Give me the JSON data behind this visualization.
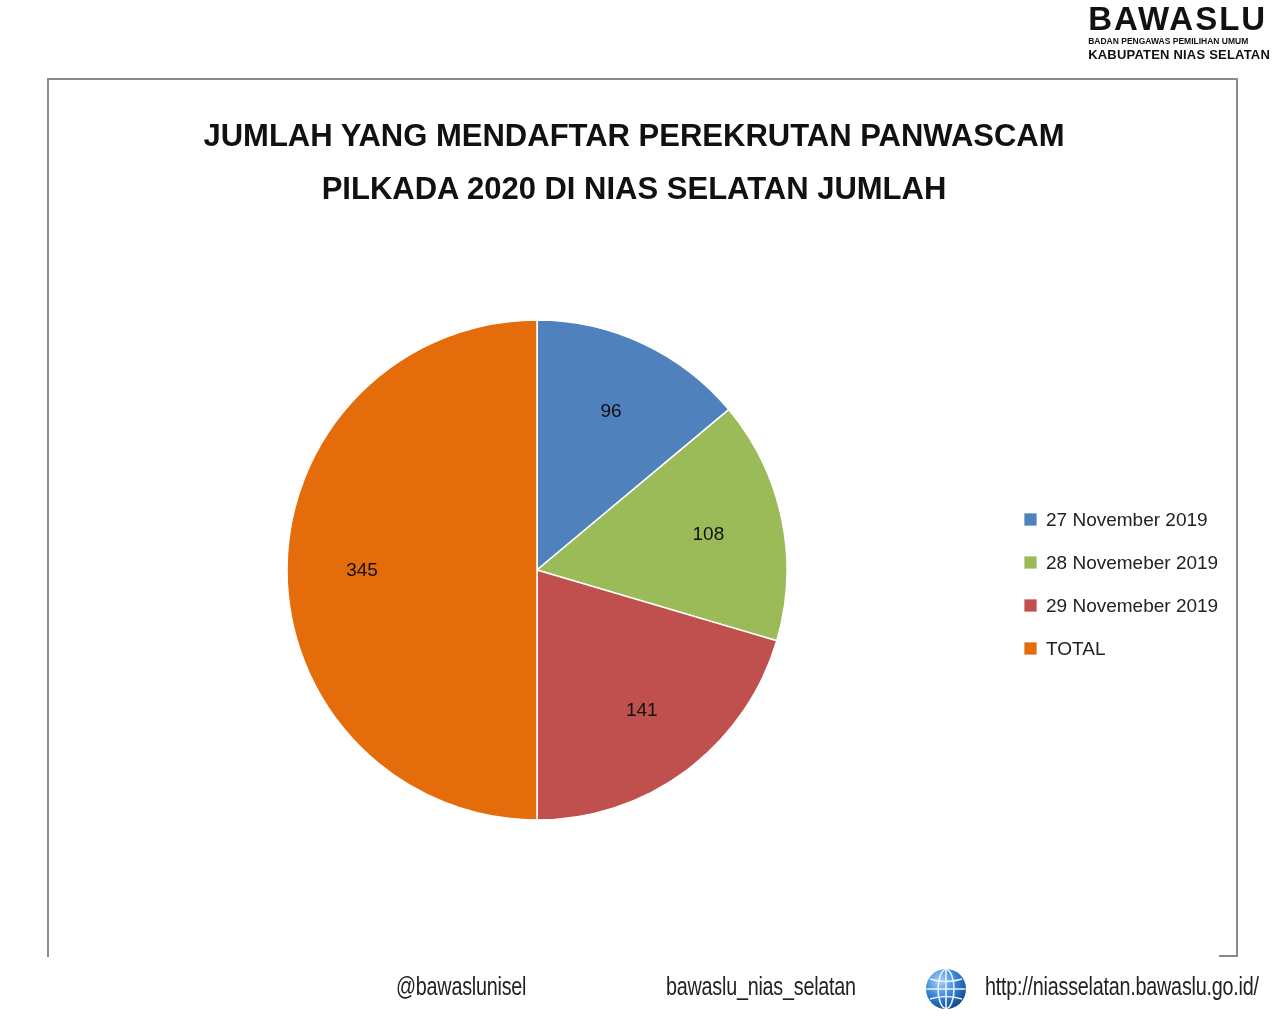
{
  "chart_data": {
    "type": "pie",
    "title": "JUMLAH YANG MENDAFTAR PEREKRUTAN PANWASCAM PILKADA 2020 DI NIAS SELATAN JUMLAH",
    "categories": [
      "27 November 2019",
      "28 Novemeber 2019",
      "29 Novemeber 2019",
      "TOTAL"
    ],
    "values": [
      96,
      108,
      141,
      345
    ],
    "colors": [
      "#4f81bd",
      "#9bbb59",
      "#c0504d",
      "#e46c0a"
    ],
    "data_labels": true,
    "legend": "right",
    "annotations": [
      "BAWASLU",
      "BADAN PENGAWAS PEMILIHAN UMUM",
      "KABUPATEN NIAS SELATAN",
      "@bawaslunisel",
      "bawaslu_nias_selatan",
      "http://niasselatan.bawaslu.go.id/"
    ]
  }
}
